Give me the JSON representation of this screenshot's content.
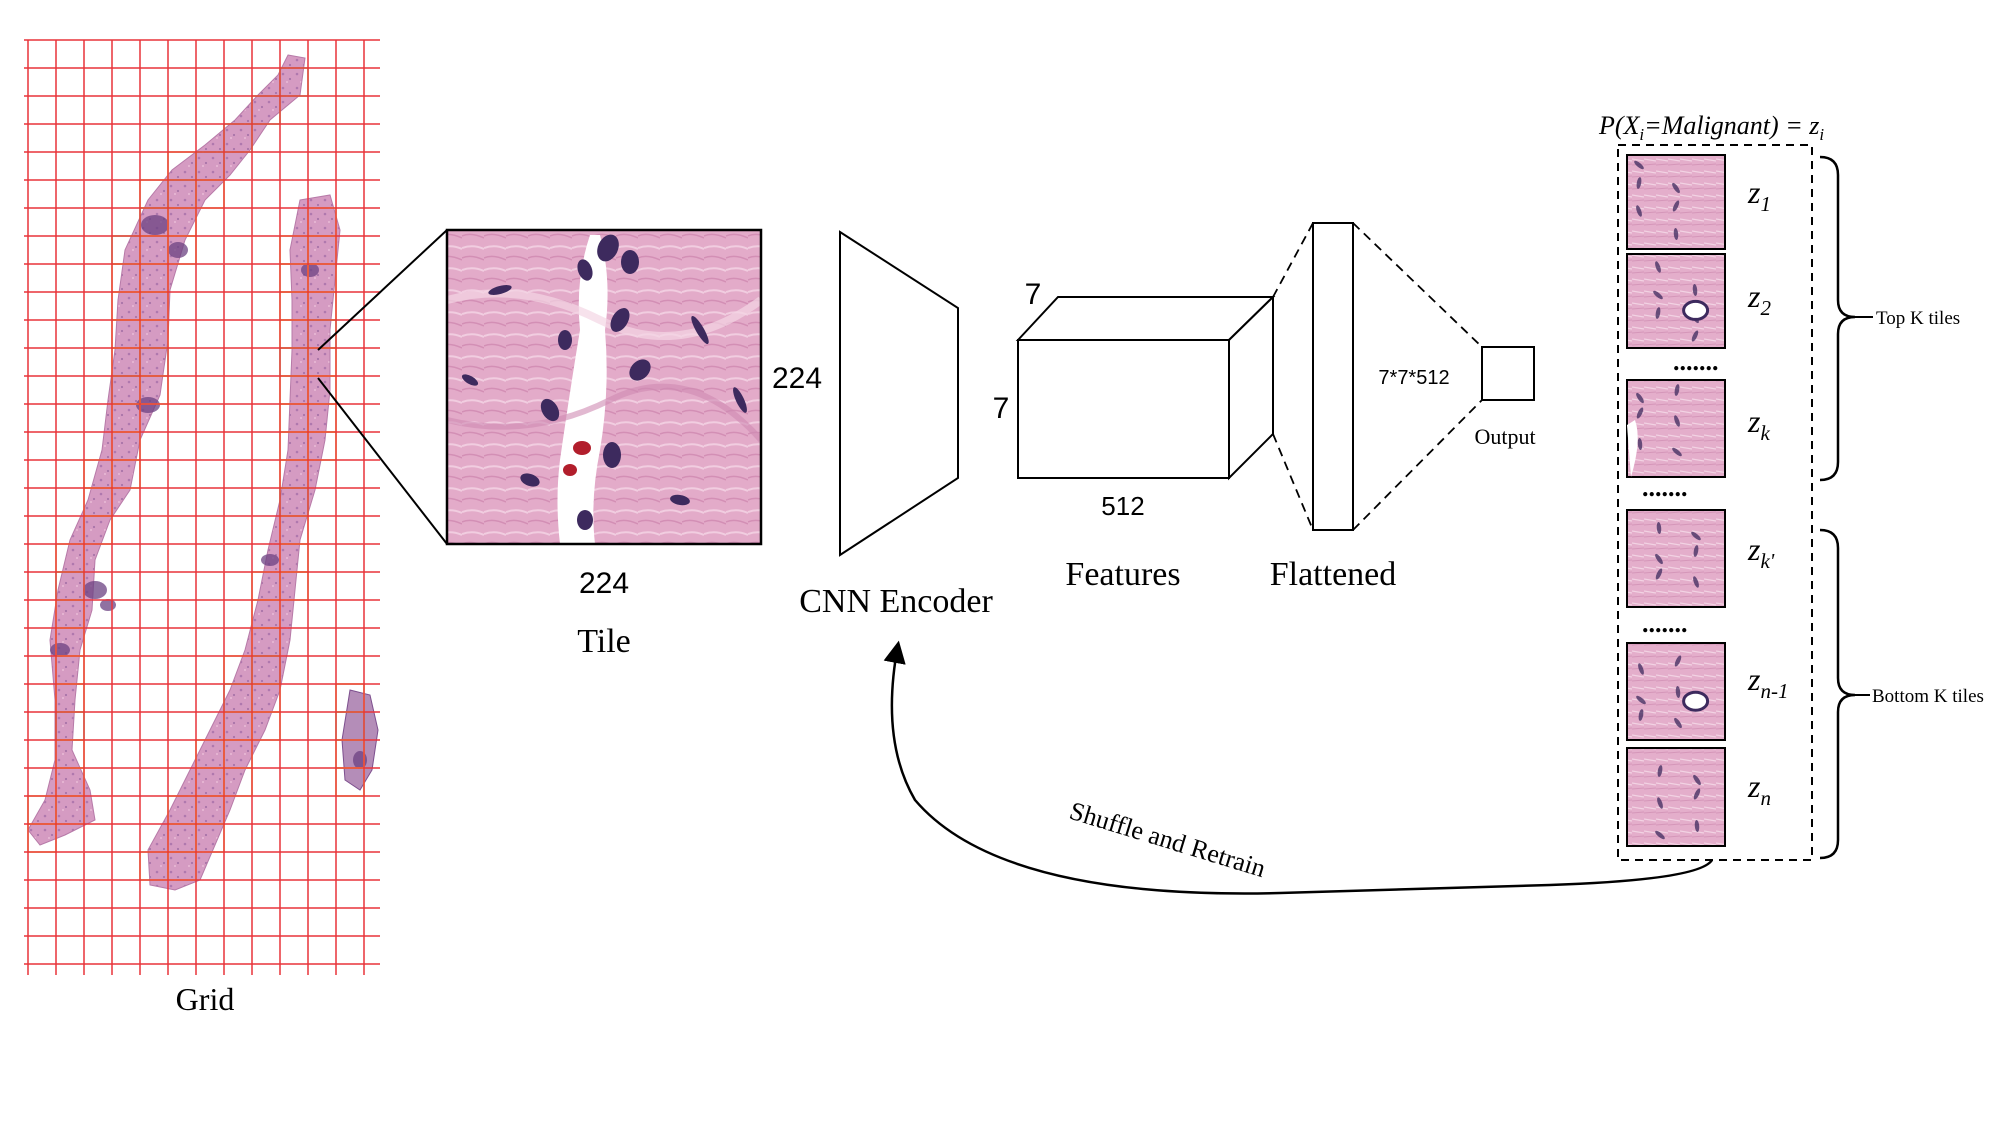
{
  "grid": {
    "label": "Grid"
  },
  "tile": {
    "label": "Tile",
    "width_label": "224",
    "height_label": "224"
  },
  "encoder": {
    "label": "CNN Encoder"
  },
  "features": {
    "label": "Features",
    "top_label": "7",
    "side_label": "7",
    "bottom_label": "512"
  },
  "flattened": {
    "label": "Flattened",
    "dims_label": "7*7*512"
  },
  "output": {
    "label": "Output"
  },
  "probability": {
    "prefix": "P(X",
    "prefix_sub": "i",
    "middle": "=Malignant) = z",
    "suffix_sub": "i"
  },
  "tiles_list": {
    "items": [
      {
        "base": "z",
        "sub": "1"
      },
      {
        "base": "z",
        "sub": "2"
      },
      {
        "base": "z",
        "sub": "k"
      },
      {
        "base": "z",
        "sub": "k'"
      },
      {
        "base": "z",
        "sub": "n-1"
      },
      {
        "base": "z",
        "sub": "n"
      }
    ],
    "ellipsis": "......."
  },
  "brackets": {
    "top_label": "Top K tiles",
    "bottom_label": "Bottom K tiles"
  },
  "feedback": {
    "label": "Shuffle and Retrain"
  },
  "colors": {
    "grid_line": "#e8343a",
    "tissue_pink": "#d59bc2",
    "tissue_purple": "#7d4f8e",
    "tile_border": "#f2e14a",
    "tile_highlight": "#9ee06a",
    "histology_bg": "#e2a7c7",
    "nucleus": "#3d2a5e",
    "rbc": "#b21e2c"
  }
}
